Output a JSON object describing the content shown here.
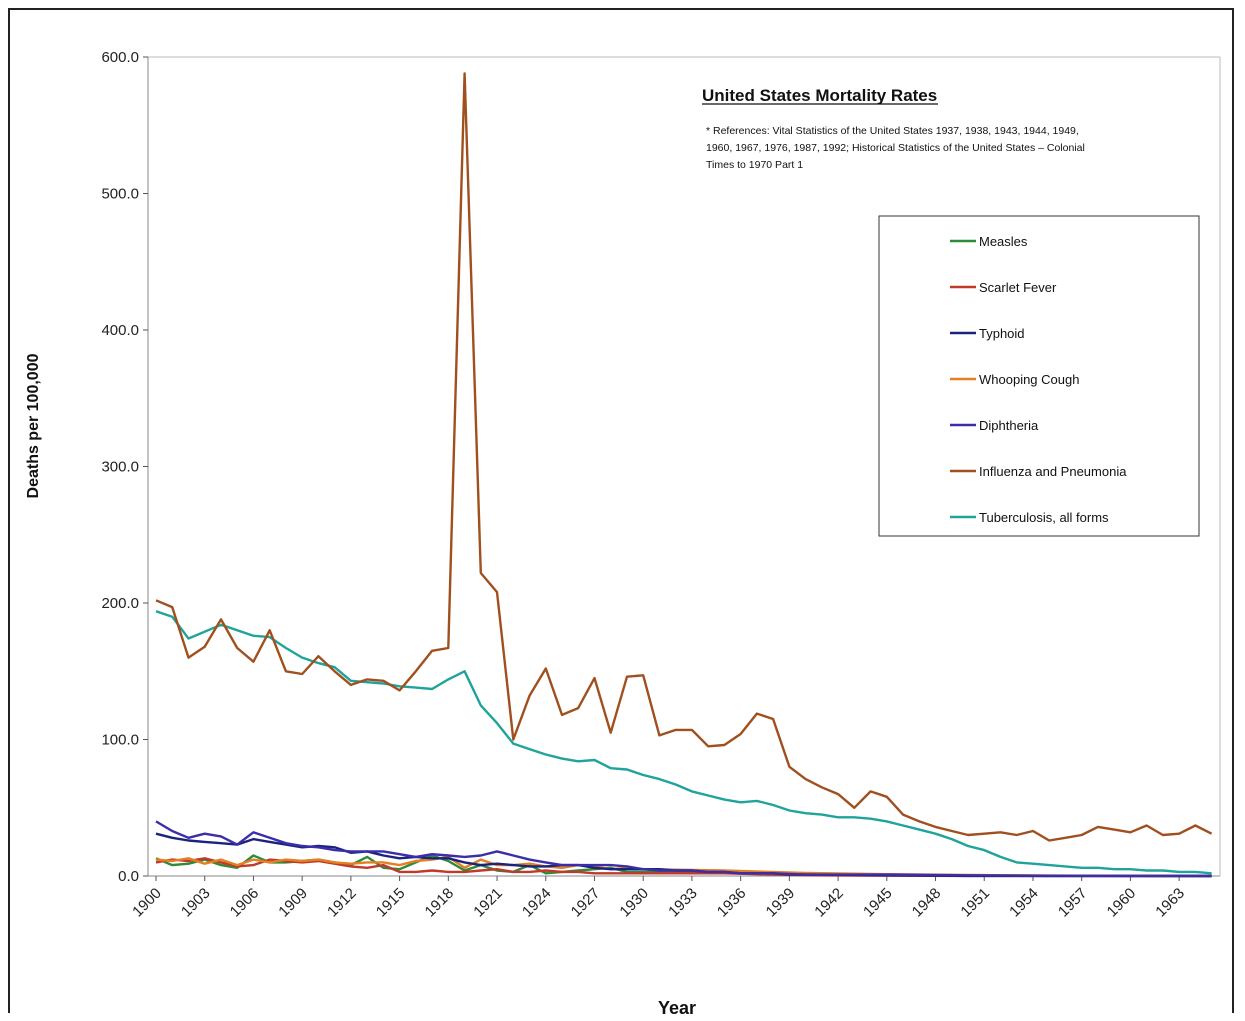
{
  "chart_data": {
    "type": "line",
    "title": "United States Mortality Rates",
    "annotation_lines": [
      "* References: Vital Statistics of the United States 1937, 1938, 1943, 1944, 1949,",
      "1960, 1967, 1976, 1987, 1992; Historical Statistics of the United States – Colonial",
      "Times to 1970 Part 1"
    ],
    "xlabel": "Year",
    "ylabel": "Deaths per 100,000",
    "ylim": [
      0,
      600
    ],
    "xlim": [
      1900,
      1965
    ],
    "y_ticks": [
      "0.0",
      "100.0",
      "200.0",
      "300.0",
      "400.0",
      "500.0",
      "600.0"
    ],
    "x_ticks": [
      "1900",
      "1903",
      "1906",
      "1909",
      "1912",
      "1915",
      "1918",
      "1921",
      "1924",
      "1927",
      "1930",
      "1933",
      "1936",
      "1939",
      "1942",
      "1945",
      "1948",
      "1951",
      "1954",
      "1957",
      "1960",
      "1963"
    ],
    "legend_position": "right",
    "grid": false,
    "series": [
      {
        "name": "Measles",
        "color": "#2e8b3a",
        "x": [
          1900,
          1901,
          1902,
          1903,
          1904,
          1905,
          1906,
          1907,
          1908,
          1909,
          1910,
          1911,
          1912,
          1913,
          1914,
          1915,
          1916,
          1917,
          1918,
          1919,
          1920,
          1921,
          1922,
          1923,
          1924,
          1925,
          1926,
          1927,
          1928,
          1929,
          1930,
          1935,
          1940,
          1945,
          1950,
          1955,
          1960,
          1965
        ],
        "y": [
          13,
          8,
          9,
          12,
          8,
          6,
          15,
          10,
          10,
          11,
          12,
          10,
          8,
          14,
          6,
          5,
          10,
          15,
          11,
          4,
          8,
          4,
          3,
          8,
          2,
          3,
          4,
          5,
          6,
          3,
          3,
          3,
          0.5,
          1,
          0.3,
          0.2,
          0.2,
          0.1
        ]
      },
      {
        "name": "Scarlet Fever",
        "color": "#c0392b",
        "x": [
          1900,
          1901,
          1902,
          1903,
          1904,
          1905,
          1906,
          1907,
          1908,
          1909,
          1910,
          1911,
          1912,
          1913,
          1914,
          1915,
          1916,
          1917,
          1918,
          1919,
          1920,
          1921,
          1922,
          1923,
          1924,
          1925,
          1926,
          1927,
          1928,
          1929,
          1930,
          1935,
          1940,
          1945,
          1950,
          1955,
          1960,
          1965
        ],
        "y": [
          10,
          12,
          11,
          13,
          10,
          7,
          8,
          12,
          11,
          10,
          11,
          9,
          7,
          6,
          8,
          3,
          3,
          4,
          3,
          3,
          4,
          5,
          3,
          3,
          4,
          3,
          3,
          2,
          2,
          2,
          2,
          2,
          0.5,
          0.2,
          0.1,
          0.1,
          0.1,
          0.1
        ]
      },
      {
        "name": "Typhoid",
        "color": "#1a237e",
        "x": [
          1900,
          1901,
          1902,
          1903,
          1904,
          1905,
          1906,
          1907,
          1908,
          1909,
          1910,
          1911,
          1912,
          1913,
          1914,
          1915,
          1916,
          1917,
          1918,
          1919,
          1920,
          1921,
          1922,
          1923,
          1924,
          1925,
          1926,
          1927,
          1928,
          1929,
          1930,
          1931,
          1932,
          1933,
          1934,
          1935,
          1936,
          1937,
          1938,
          1939,
          1940,
          1945,
          1950,
          1955,
          1960,
          1965
        ],
        "y": [
          31,
          28,
          26,
          25,
          24,
          23,
          27,
          25,
          23,
          21,
          22,
          21,
          17,
          18,
          15,
          13,
          14,
          13,
          13,
          10,
          8,
          9,
          8,
          7,
          7,
          8,
          8,
          6,
          5,
          5,
          5,
          5,
          4,
          4,
          3,
          3,
          2,
          2,
          2,
          1,
          1,
          0.5,
          0.1,
          0,
          0,
          0
        ]
      },
      {
        "name": "Whooping Cough",
        "color": "#e67e22",
        "x": [
          1900,
          1901,
          1902,
          1903,
          1904,
          1905,
          1906,
          1907,
          1908,
          1909,
          1910,
          1911,
          1912,
          1913,
          1914,
          1915,
          1916,
          1917,
          1918,
          1919,
          1920,
          1921,
          1922,
          1923,
          1924,
          1925,
          1926,
          1927,
          1928,
          1929,
          1930,
          1935,
          1940,
          1945,
          1950,
          1955,
          1960,
          1965
        ],
        "y": [
          12,
          11,
          13,
          9,
          12,
          8,
          12,
          10,
          12,
          11,
          12,
          10,
          9,
          10,
          10,
          8,
          11,
          12,
          14,
          6,
          12,
          8,
          8,
          9,
          7,
          6,
          8,
          7,
          5,
          6,
          5,
          4,
          2.2,
          1.3,
          0.7,
          0.3,
          0.1,
          0
        ]
      },
      {
        "name": "Diphtheria",
        "color": "#3b2ea8",
        "x": [
          1900,
          1901,
          1902,
          1903,
          1904,
          1905,
          1906,
          1907,
          1908,
          1909,
          1910,
          1911,
          1912,
          1913,
          1914,
          1915,
          1916,
          1917,
          1918,
          1919,
          1920,
          1921,
          1922,
          1923,
          1924,
          1925,
          1926,
          1927,
          1928,
          1929,
          1930,
          1931,
          1932,
          1933,
          1934,
          1935,
          1936,
          1937,
          1938,
          1939,
          1940,
          1945,
          1950,
          1955,
          1960,
          1965
        ],
        "y": [
          40,
          33,
          28,
          31,
          29,
          23,
          32,
          28,
          24,
          22,
          21,
          19,
          18,
          18,
          18,
          16,
          14,
          16,
          15,
          14,
          15,
          18,
          15,
          12,
          10,
          8,
          8,
          8,
          8,
          7,
          5,
          4,
          4,
          4,
          3,
          3,
          2,
          2,
          2,
          1.5,
          1,
          1,
          0.5,
          0.2,
          0.1,
          0
        ]
      },
      {
        "name": "Influenza and Pneumonia",
        "color": "#a0501e",
        "x": [
          1900,
          1901,
          1902,
          1903,
          1904,
          1905,
          1906,
          1907,
          1908,
          1909,
          1910,
          1911,
          1912,
          1913,
          1914,
          1915,
          1916,
          1917,
          1918,
          1919,
          1920,
          1921,
          1922,
          1923,
          1924,
          1925,
          1926,
          1927,
          1928,
          1929,
          1930,
          1931,
          1932,
          1933,
          1934,
          1935,
          1936,
          1937,
          1938,
          1939,
          1940,
          1941,
          1942,
          1943,
          1944,
          1945,
          1946,
          1947,
          1948,
          1949,
          1950,
          1951,
          1952,
          1953,
          1954,
          1955,
          1956,
          1957,
          1958,
          1959,
          1960,
          1961,
          1962,
          1963,
          1964,
          1965
        ],
        "y": [
          202,
          197,
          160,
          168,
          188,
          167,
          157,
          180,
          150,
          148,
          161,
          150,
          140,
          144,
          143,
          136,
          150,
          165,
          167,
          588,
          222,
          208,
          100,
          132,
          152,
          118,
          123,
          145,
          105,
          146,
          147,
          103,
          107,
          107,
          95,
          96,
          104,
          119,
          115,
          80,
          71,
          65,
          60,
          50,
          62,
          58,
          45,
          40,
          36,
          33,
          30,
          31,
          32,
          30,
          33,
          26,
          28,
          30,
          36,
          34,
          32,
          37,
          30,
          31,
          37,
          31
        ]
      },
      {
        "name": "Tuberculosis, all forms",
        "color": "#1fa39a",
        "x": [
          1900,
          1901,
          1902,
          1903,
          1904,
          1905,
          1906,
          1907,
          1908,
          1909,
          1910,
          1911,
          1912,
          1913,
          1914,
          1915,
          1916,
          1917,
          1918,
          1919,
          1920,
          1921,
          1922,
          1923,
          1924,
          1925,
          1926,
          1927,
          1928,
          1929,
          1930,
          1931,
          1932,
          1933,
          1934,
          1935,
          1936,
          1937,
          1938,
          1939,
          1940,
          1941,
          1942,
          1943,
          1944,
          1945,
          1946,
          1947,
          1948,
          1949,
          1950,
          1951,
          1952,
          1953,
          1954,
          1955,
          1956,
          1957,
          1958,
          1959,
          1960,
          1961,
          1962,
          1963,
          1964,
          1965
        ],
        "y": [
          194,
          190,
          174,
          179,
          184,
          180,
          176,
          175,
          167,
          160,
          156,
          153,
          143,
          142,
          141,
          139,
          138,
          137,
          144,
          150,
          125,
          112,
          97,
          93,
          89,
          86,
          84,
          85,
          79,
          78,
          74,
          71,
          67,
          62,
          59,
          56,
          54,
          55,
          52,
          48,
          46,
          45,
          43,
          43,
          42,
          40,
          37,
          34,
          31,
          27,
          22,
          19,
          14,
          10,
          9,
          8,
          7,
          6,
          6,
          5,
          5,
          4,
          4,
          3,
          3,
          2
        ]
      }
    ]
  }
}
